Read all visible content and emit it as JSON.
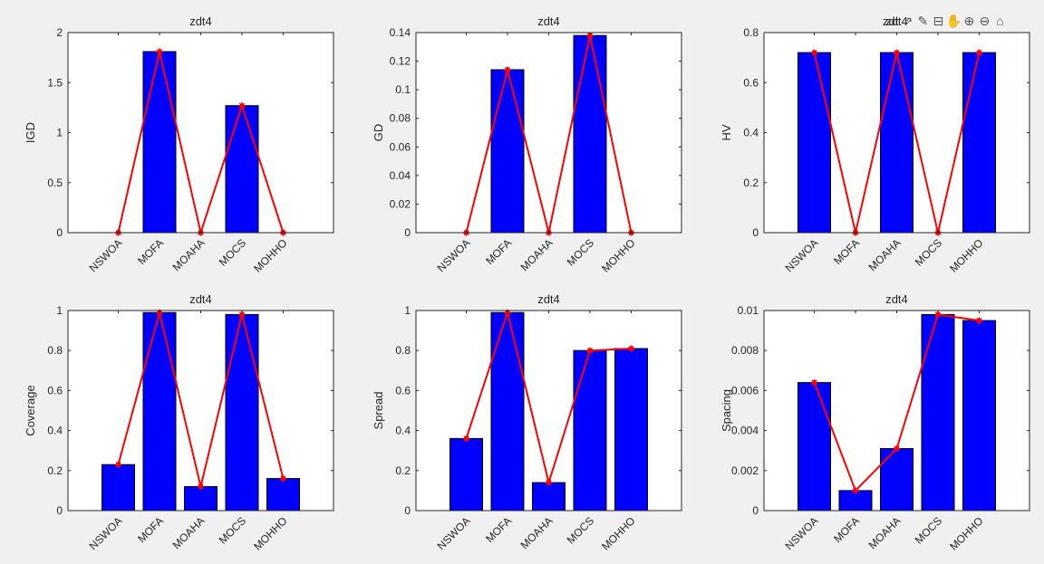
{
  "toolbar": {
    "overlap_title": "zdt",
    "buttons": [
      {
        "name": "export-icon",
        "glyph": "⇗"
      },
      {
        "name": "brush-icon",
        "glyph": "✎"
      },
      {
        "name": "datatip-icon",
        "glyph": "⊟"
      },
      {
        "name": "pan-hand-icon",
        "glyph": "✋"
      },
      {
        "name": "zoom-in-icon",
        "glyph": "⊕"
      },
      {
        "name": "zoom-out-icon",
        "glyph": "⊖"
      },
      {
        "name": "home-icon",
        "glyph": "⌂"
      }
    ]
  },
  "colors": {
    "bar_fill": "#0000ff",
    "bar_edge": "#000000",
    "line": "#ff0000",
    "marker": "#ff0000",
    "axes_bg": "#ffffff",
    "axes_edge": "#262626",
    "figure_bg": "#f0f0f0"
  },
  "chart_data": [
    {
      "type": "bar",
      "title": "zdt4",
      "xlabel": "",
      "ylabel": "IGD",
      "categories": [
        "NSWOA",
        "MOFA",
        "MOAHA",
        "MOCS",
        "MOHHO"
      ],
      "values": [
        0,
        1.81,
        0,
        1.27,
        0
      ],
      "ylim": [
        0,
        2
      ],
      "yticks": [
        0,
        0.5,
        1,
        1.5,
        2
      ],
      "ytick_labels": [
        "0",
        "0.5",
        "1",
        "1.5",
        "2"
      ],
      "overlay_line": true,
      "grid": false
    },
    {
      "type": "bar",
      "title": "zdt4",
      "xlabel": "",
      "ylabel": "GD",
      "categories": [
        "NSWOA",
        "MOFA",
        "MOAHA",
        "MOCS",
        "MOHHO"
      ],
      "values": [
        0,
        0.114,
        0,
        0.138,
        0
      ],
      "ylim": [
        0,
        0.14
      ],
      "yticks": [
        0,
        0.02,
        0.04,
        0.06,
        0.08,
        0.1,
        0.12,
        0.14
      ],
      "ytick_labels": [
        "0",
        "0.02",
        "0.04",
        "0.06",
        "0.08",
        "0.1",
        "0.12",
        "0.14"
      ],
      "overlay_line": true,
      "grid": false
    },
    {
      "type": "bar",
      "title": "zdt4",
      "xlabel": "",
      "ylabel": "HV",
      "categories": [
        "NSWOA",
        "MOFA",
        "MOAHA",
        "MOCS",
        "MOHHO"
      ],
      "values": [
        0.72,
        0,
        0.72,
        0,
        0.72
      ],
      "ylim": [
        0,
        0.8
      ],
      "yticks": [
        0,
        0.2,
        0.4,
        0.6,
        0.8
      ],
      "ytick_labels": [
        "0",
        "0.2",
        "0.4",
        "0.6",
        "0.8"
      ],
      "overlay_line": true,
      "grid": false
    },
    {
      "type": "bar",
      "title": "zdt4",
      "xlabel": "",
      "ylabel": "Coverage",
      "categories": [
        "NSWOA",
        "MOFA",
        "MOAHA",
        "MOCS",
        "MOHHO"
      ],
      "values": [
        0.23,
        0.99,
        0.12,
        0.98,
        0.16
      ],
      "ylim": [
        0,
        1
      ],
      "yticks": [
        0,
        0.2,
        0.4,
        0.6,
        0.8,
        1
      ],
      "ytick_labels": [
        "0",
        "0.2",
        "0.4",
        "0.6",
        "0.8",
        "1"
      ],
      "overlay_line": true,
      "grid": false
    },
    {
      "type": "bar",
      "title": "zdt4",
      "xlabel": "",
      "ylabel": "Spread",
      "categories": [
        "NSWOA",
        "MOFA",
        "MOAHA",
        "MOCS",
        "MOHHO"
      ],
      "values": [
        0.36,
        0.99,
        0.14,
        0.8,
        0.81
      ],
      "ylim": [
        0,
        1
      ],
      "yticks": [
        0,
        0.2,
        0.4,
        0.6,
        0.8,
        1
      ],
      "ytick_labels": [
        "0",
        "0.2",
        "0.4",
        "0.6",
        "0.8",
        "1"
      ],
      "overlay_line": true,
      "grid": false
    },
    {
      "type": "bar",
      "title": "zdt4",
      "xlabel": "",
      "ylabel": "Spacing",
      "categories": [
        "NSWOA",
        "MOFA",
        "MOAHA",
        "MOCS",
        "MOHHO"
      ],
      "values": [
        0.0064,
        0.001,
        0.0031,
        0.0098,
        0.0095
      ],
      "ylim": [
        0,
        0.01
      ],
      "yticks": [
        0,
        0.002,
        0.004,
        0.006,
        0.008,
        0.01
      ],
      "ytick_labels": [
        "0",
        "0.002",
        "0.004",
        "0.006",
        "0.008",
        "0.01"
      ],
      "overlay_line": true,
      "grid": false
    }
  ]
}
